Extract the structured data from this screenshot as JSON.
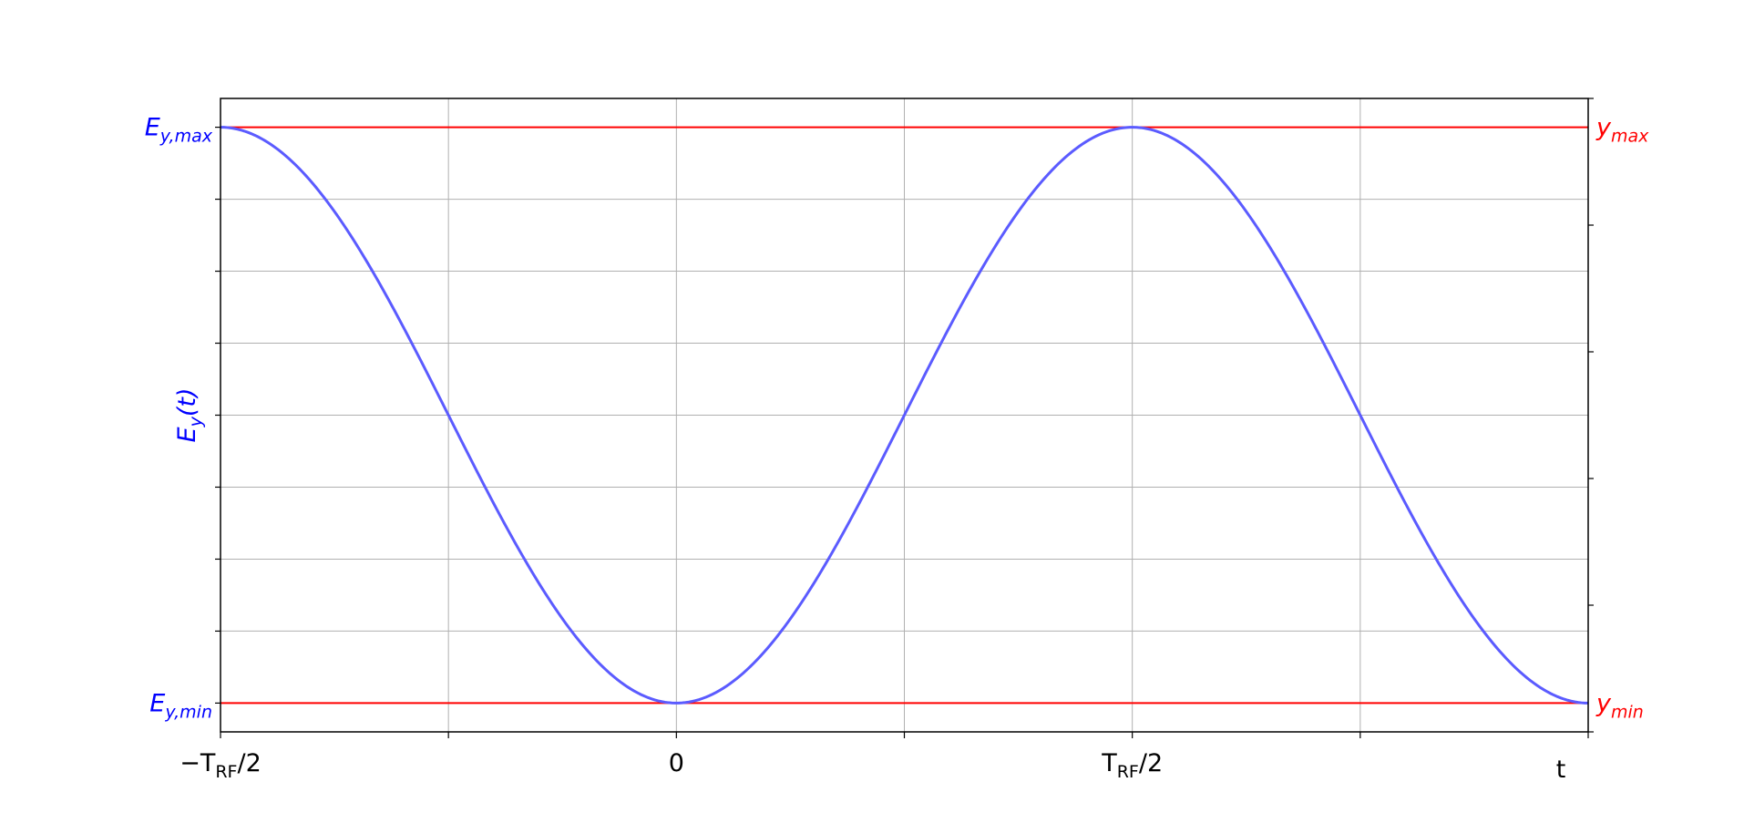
{
  "chart_data": {
    "type": "line",
    "title": "",
    "xlabel": "t",
    "ylabel": "E_y(t)",
    "grid": true,
    "xlim": [
      -0.5,
      1.0
    ],
    "ylim": [
      -1.1,
      1.1
    ],
    "x_ticks": [
      {
        "value": -0.5,
        "label": "−T_RF/2"
      },
      {
        "value": 0,
        "label": "0"
      },
      {
        "value": 0.5,
        "label": "T_RF/2"
      }
    ],
    "left_axis_labels": {
      "top": "E_y,max",
      "bottom": "E_y,min"
    },
    "right_axis_labels": {
      "top": "y_max",
      "bottom": "y_min"
    },
    "series": [
      {
        "formula": "-cos(2π t / T_RF)",
        "x": [
          -0.5,
          -0.375,
          -0.25,
          -0.125,
          0,
          0.125,
          0.25,
          0.375,
          0.5,
          0.625,
          0.75,
          0.875,
          1.0
        ],
        "y": [
          1,
          0.7071,
          0,
          -0.7071,
          -1,
          -0.7071,
          0,
          0.7071,
          1,
          0.7071,
          0,
          -0.7071,
          -1
        ],
        "color": "#5b5bff"
      }
    ],
    "reference_lines": [
      {
        "y": 1,
        "color": "#ff0000"
      },
      {
        "y": -1,
        "color": "#ff0000"
      }
    ]
  }
}
